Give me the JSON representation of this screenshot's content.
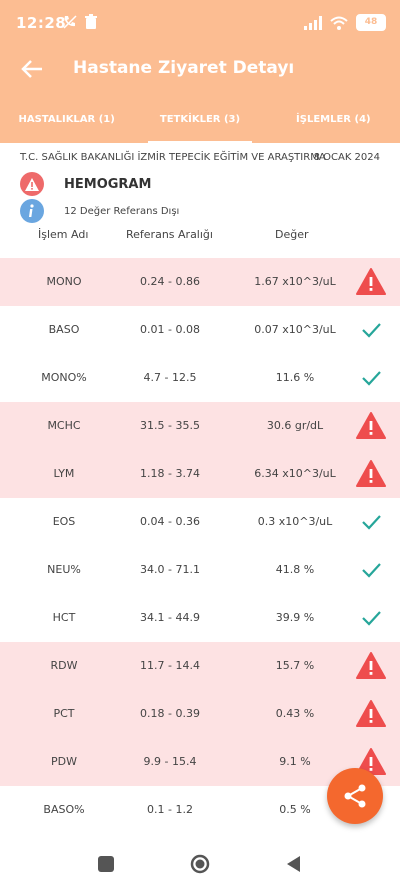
{
  "status_bar": {
    "time": "12:28",
    "battery": "48"
  },
  "header": {
    "title": "Hastane Ziyaret Detayı",
    "back_icon": "arrow-left-icon"
  },
  "tabs": [
    {
      "label": "HASTALIKLAR (1)",
      "active": false
    },
    {
      "label": "TETKİKLER (3)",
      "active": true
    },
    {
      "label": "İŞLEMLER (4)",
      "active": false
    }
  ],
  "visit": {
    "hospital": "T.C. SAĞLIK BAKANLIĞI İZMİR TEPECİK EĞİTİM VE ARAŞTIRMA",
    "date": "8 OCAK 2024"
  },
  "group": {
    "title": "HEMOGRAM",
    "subtitle": "12 Değer Referans Dışı"
  },
  "columns": {
    "name": "İşlem Adı",
    "range": "Referans Aralığı",
    "value": "Değer"
  },
  "tests": [
    {
      "name": "MONO",
      "range": "0.24 - 0.86",
      "value": "1.67 x10^3/uL",
      "out": true
    },
    {
      "name": "BASO",
      "range": "0.01 - 0.08",
      "value": "0.07 x10^3/uL",
      "out": false
    },
    {
      "name": "MONO%",
      "range": "4.7 - 12.5",
      "value": "11.6 %",
      "out": false
    },
    {
      "name": "MCHC",
      "range": "31.5 - 35.5",
      "value": "30.6 gr/dL",
      "out": true
    },
    {
      "name": "LYM",
      "range": "1.18 - 3.74",
      "value": "6.34 x10^3/uL",
      "out": true
    },
    {
      "name": "EOS",
      "range": "0.04 - 0.36",
      "value": "0.3 x10^3/uL",
      "out": false
    },
    {
      "name": "NEU%",
      "range": "34.0 - 71.1",
      "value": "41.8 %",
      "out": false
    },
    {
      "name": "HCT",
      "range": "34.1 - 44.9",
      "value": "39.9 %",
      "out": false
    },
    {
      "name": "RDW",
      "range": "11.7 - 14.4",
      "value": "15.7 %",
      "out": true
    },
    {
      "name": "PCT",
      "range": "0.18 - 0.39",
      "value": "0.43 %",
      "out": true
    },
    {
      "name": "PDW",
      "range": "9.9 - 15.4",
      "value": "9.1 %",
      "out": true
    },
    {
      "name": "BASO%",
      "range": "0.1 - 1.2",
      "value": "0.5 %",
      "out": false
    }
  ],
  "colors": {
    "header": "#fcbd92",
    "out_row": "#fde2e3",
    "warning": "#ee4d4d",
    "ok": "#26a69a",
    "fab": "#f4682e"
  }
}
